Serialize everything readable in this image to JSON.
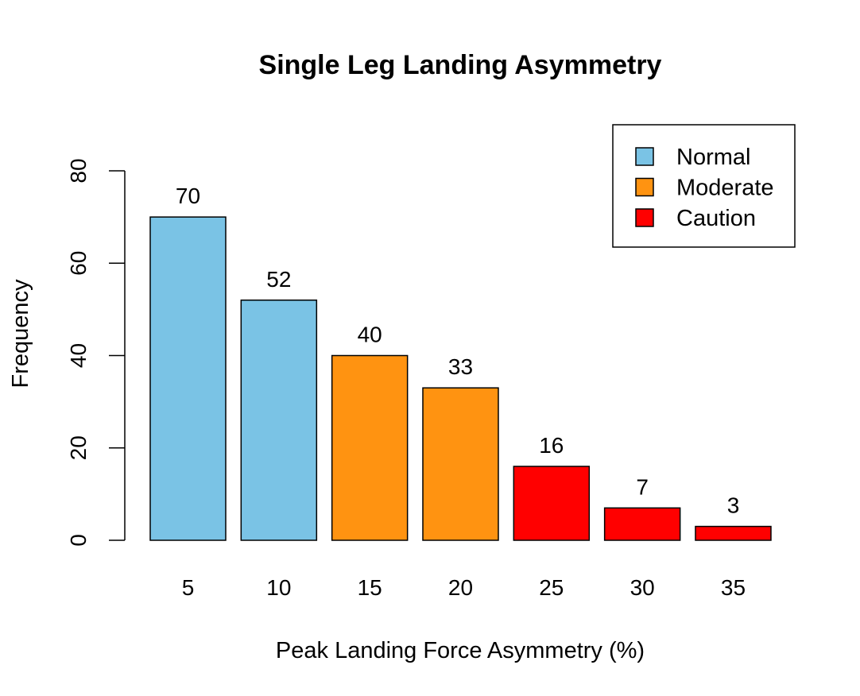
{
  "chart_data": {
    "type": "bar",
    "title": "Single Leg Landing Asymmetry",
    "xlabel": "Peak Landing Force Asymmetry (%)",
    "ylabel": "Frequency",
    "categories": [
      "5",
      "10",
      "15",
      "20",
      "25",
      "30",
      "35"
    ],
    "values": [
      70,
      52,
      40,
      33,
      16,
      7,
      3
    ],
    "data_labels": [
      "70",
      "52",
      "40",
      "33",
      "16",
      "7",
      "3"
    ],
    "bar_groups": [
      "Normal",
      "Normal",
      "Moderate",
      "Moderate",
      "Caution",
      "Caution",
      "Caution"
    ],
    "ylim": [
      0,
      80
    ],
    "yticks": [
      0,
      20,
      40,
      60,
      80
    ],
    "grid": false,
    "legend": {
      "position": "top-right",
      "entries": [
        {
          "label": "Normal",
          "color": "#7AC3E5"
        },
        {
          "label": "Moderate",
          "color": "#FF9311"
        },
        {
          "label": "Caution",
          "color": "#FF0000"
        }
      ]
    }
  }
}
